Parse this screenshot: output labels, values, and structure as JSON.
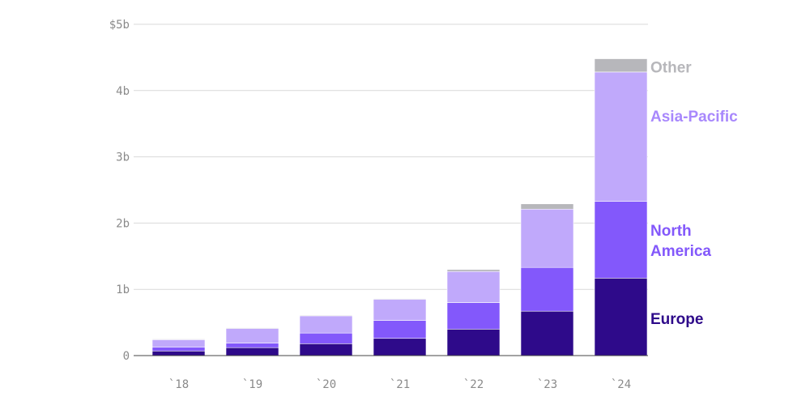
{
  "chart_data": {
    "type": "bar",
    "stacked": true,
    "categories": [
      "`18",
      "`19",
      "`20",
      "`21",
      "`22",
      "`23",
      "`24"
    ],
    "series": [
      {
        "name": "Europe",
        "color": "#2e0a8a",
        "values": [
          0.07,
          0.12,
          0.18,
          0.26,
          0.4,
          0.67,
          1.17
        ]
      },
      {
        "name": "North America",
        "color": "#8358fb",
        "values": [
          0.06,
          0.07,
          0.16,
          0.27,
          0.4,
          0.66,
          1.16
        ]
      },
      {
        "name": "Asia-Pacific",
        "color": "#c0a9fb",
        "values": [
          0.11,
          0.22,
          0.26,
          0.32,
          0.47,
          0.88,
          1.95
        ]
      },
      {
        "name": "Other",
        "color": "#b7b7bb",
        "values": [
          0.01,
          0.01,
          0.01,
          0.01,
          0.03,
          0.08,
          0.2
        ]
      }
    ],
    "legend_labels": [
      {
        "key": "other",
        "lines": [
          "Other"
        ],
        "color": "#b7b7bb"
      },
      {
        "key": "asia_pacific",
        "lines": [
          "Asia-Pacific"
        ],
        "color": "#a888fc"
      },
      {
        "key": "north_america",
        "lines": [
          "North",
          "America"
        ],
        "color": "#8358fb"
      },
      {
        "key": "europe",
        "lines": [
          "Europe"
        ],
        "color": "#2e0a8a"
      }
    ],
    "yticks": [
      {
        "value": 0,
        "label": "0"
      },
      {
        "value": 1,
        "label": "1b"
      },
      {
        "value": 2,
        "label": "2b"
      },
      {
        "value": 3,
        "label": "3b"
      },
      {
        "value": 4,
        "label": "4b"
      },
      {
        "value": 5,
        "label": "$5b"
      }
    ],
    "ylim": [
      0,
      5
    ],
    "grid": true,
    "legend_placement": "right, inline labels beside last bar"
  }
}
